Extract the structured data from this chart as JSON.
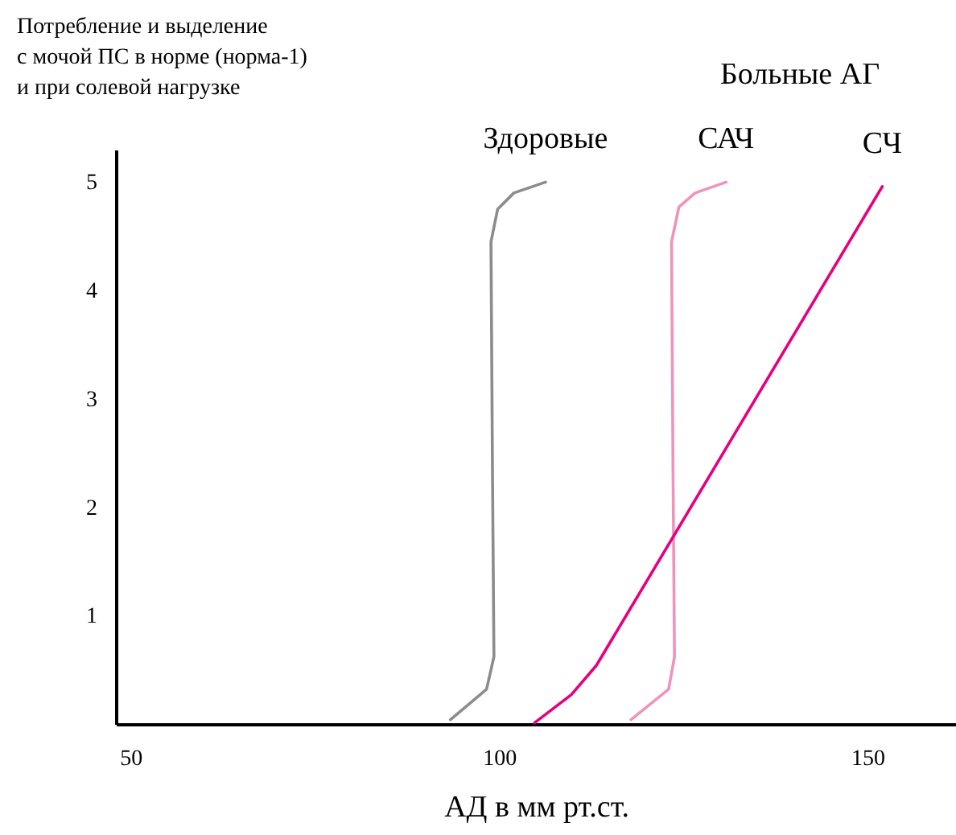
{
  "chart_data": {
    "type": "line",
    "ylabel": "Потребление и выделение\nс мочой ПС в норме (норма-1)\nи при солевой нагрузке",
    "xlabel": "АД в мм рт.ст.",
    "annotations": [
      "Больные АГ"
    ],
    "xlim": [
      48,
      162
    ],
    "xticks": [
      50,
      100,
      150
    ],
    "ylim": [
      0,
      5.3
    ],
    "yticks": [
      1,
      2,
      3,
      4,
      5
    ],
    "grid": false,
    "legend": false,
    "marker": "none",
    "line_style": "solid",
    "series": [
      {
        "name": "Здоровые",
        "color": "#8c8c8c",
        "x": [
          93.4,
          98.3,
          99.3,
          99.1,
          98.9,
          99.8,
          102.0,
          106.3
        ],
        "values": [
          0.04,
          0.32,
          0.62,
          2.36,
          4.45,
          4.75,
          4.9,
          5.0
        ]
      },
      {
        "name": "САЧ",
        "color": "#f093bc",
        "x": [
          117.9,
          123.0,
          123.8,
          123.6,
          123.4,
          124.4,
          126.6,
          130.8
        ],
        "values": [
          0.04,
          0.32,
          0.62,
          2.36,
          4.45,
          4.77,
          4.9,
          5.0
        ]
      },
      {
        "name": "СЧ",
        "color": "#e6007e",
        "x": [
          104.8,
          109.8,
          113.2,
          152.0
        ],
        "values": [
          0.01,
          0.27,
          0.54,
          4.96
        ]
      }
    ]
  }
}
